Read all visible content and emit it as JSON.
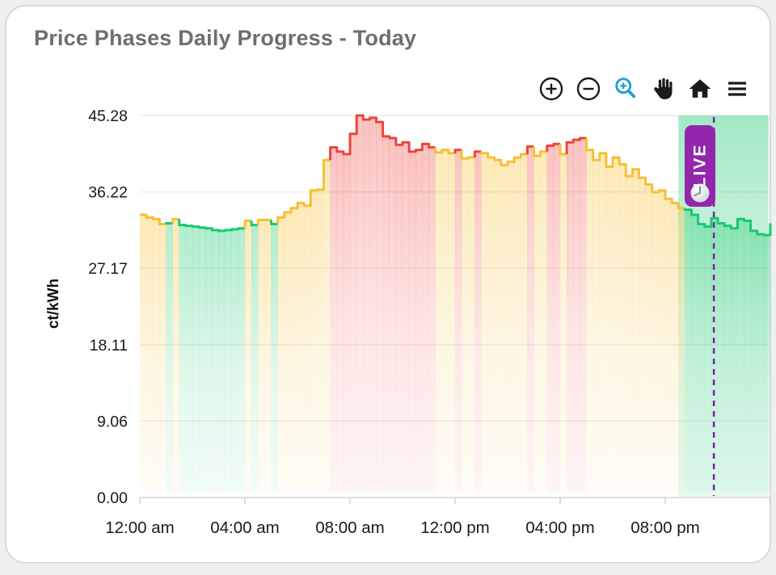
{
  "card": {
    "title": "Price Phases Daily Progress - Today"
  },
  "toolbar": {
    "icons": [
      "zoom-in-icon",
      "zoom-out-icon",
      "zoom-select-icon",
      "pan-hand-icon",
      "home-reset-icon",
      "menu-icon"
    ],
    "zoom_select_color": "#1a9fd9",
    "icon_color": "#1b1b1b"
  },
  "chart_data": {
    "type": "area",
    "subtype": "step-line-with-gradient-fill",
    "title": "Price Phases Daily Progress - Today",
    "ylabel": "ct/kWh",
    "ylim": [
      0,
      45.28
    ],
    "y_tick_values": [
      45.28,
      36.22,
      27.17,
      18.11,
      9.06,
      0
    ],
    "y_tick_labels": [
      "45.28",
      "36.22",
      "27.17",
      "18.11",
      "9.06",
      "0.00"
    ],
    "x_tick_hours": [
      0,
      4,
      8,
      12,
      16,
      20
    ],
    "x_tick_labels": [
      "12:00 am",
      "04:00 am",
      "08:00 am",
      "12:00 pm",
      "04:00 pm",
      "08:00 pm"
    ],
    "x_range_hours": [
      0,
      24
    ],
    "grid": "horizontal",
    "phase_colors": {
      "green": "#19c96e",
      "yellow": "#f5c033",
      "red": "#ee443c"
    },
    "live": {
      "label": "LIVE",
      "badge_color": "#9227ad",
      "line_color": "#7e22a3",
      "time_hours": 21.85
    },
    "green_region": {
      "start_hours": 20.5,
      "end_hours": 23.93
    },
    "end_value": 32.5,
    "series": [
      {
        "t": "00:00",
        "v": 33.5,
        "phase": "yellow"
      },
      {
        "t": "00:15",
        "v": 33.2,
        "phase": "yellow"
      },
      {
        "t": "00:30",
        "v": 33.0,
        "phase": "yellow"
      },
      {
        "t": "00:45",
        "v": 32.4,
        "phase": "yellow"
      },
      {
        "t": "01:00",
        "v": 32.5,
        "phase": "green"
      },
      {
        "t": "01:15",
        "v": 33.0,
        "phase": "yellow"
      },
      {
        "t": "01:30",
        "v": 32.3,
        "phase": "green"
      },
      {
        "t": "01:45",
        "v": 32.2,
        "phase": "green"
      },
      {
        "t": "02:00",
        "v": 32.1,
        "phase": "green"
      },
      {
        "t": "02:15",
        "v": 32.0,
        "phase": "green"
      },
      {
        "t": "02:30",
        "v": 31.9,
        "phase": "green"
      },
      {
        "t": "02:45",
        "v": 31.7,
        "phase": "green"
      },
      {
        "t": "03:00",
        "v": 31.6,
        "phase": "green"
      },
      {
        "t": "03:15",
        "v": 31.7,
        "phase": "green"
      },
      {
        "t": "03:30",
        "v": 31.8,
        "phase": "green"
      },
      {
        "t": "03:45",
        "v": 31.9,
        "phase": "green"
      },
      {
        "t": "04:00",
        "v": 32.8,
        "phase": "yellow"
      },
      {
        "t": "04:15",
        "v": 32.3,
        "phase": "green"
      },
      {
        "t": "04:30",
        "v": 32.9,
        "phase": "yellow"
      },
      {
        "t": "04:45",
        "v": 32.9,
        "phase": "yellow"
      },
      {
        "t": "05:00",
        "v": 32.4,
        "phase": "green"
      },
      {
        "t": "05:15",
        "v": 33.2,
        "phase": "yellow"
      },
      {
        "t": "05:30",
        "v": 33.8,
        "phase": "yellow"
      },
      {
        "t": "05:45",
        "v": 34.3,
        "phase": "yellow"
      },
      {
        "t": "06:00",
        "v": 34.9,
        "phase": "yellow"
      },
      {
        "t": "06:15",
        "v": 34.6,
        "phase": "yellow"
      },
      {
        "t": "06:30",
        "v": 36.4,
        "phase": "yellow"
      },
      {
        "t": "06:45",
        "v": 36.5,
        "phase": "yellow"
      },
      {
        "t": "07:00",
        "v": 40.0,
        "phase": "yellow"
      },
      {
        "t": "07:15",
        "v": 41.5,
        "phase": "red"
      },
      {
        "t": "07:30",
        "v": 41.0,
        "phase": "red"
      },
      {
        "t": "07:45",
        "v": 40.7,
        "phase": "red"
      },
      {
        "t": "08:00",
        "v": 43.1,
        "phase": "red"
      },
      {
        "t": "08:15",
        "v": 45.28,
        "phase": "red"
      },
      {
        "t": "08:30",
        "v": 44.8,
        "phase": "red"
      },
      {
        "t": "08:45",
        "v": 45.0,
        "phase": "red"
      },
      {
        "t": "09:00",
        "v": 44.5,
        "phase": "red"
      },
      {
        "t": "09:15",
        "v": 42.8,
        "phase": "red"
      },
      {
        "t": "09:30",
        "v": 42.6,
        "phase": "red"
      },
      {
        "t": "09:45",
        "v": 41.8,
        "phase": "red"
      },
      {
        "t": "10:00",
        "v": 42.1,
        "phase": "red"
      },
      {
        "t": "10:15",
        "v": 41.0,
        "phase": "red"
      },
      {
        "t": "10:30",
        "v": 41.2,
        "phase": "red"
      },
      {
        "t": "10:45",
        "v": 41.9,
        "phase": "red"
      },
      {
        "t": "11:00",
        "v": 41.5,
        "phase": "red"
      },
      {
        "t": "11:15",
        "v": 40.9,
        "phase": "yellow"
      },
      {
        "t": "11:30",
        "v": 41.2,
        "phase": "yellow"
      },
      {
        "t": "11:45",
        "v": 40.8,
        "phase": "yellow"
      },
      {
        "t": "12:00",
        "v": 41.2,
        "phase": "red"
      },
      {
        "t": "12:15",
        "v": 40.2,
        "phase": "yellow"
      },
      {
        "t": "12:30",
        "v": 40.3,
        "phase": "yellow"
      },
      {
        "t": "12:45",
        "v": 41.0,
        "phase": "red"
      },
      {
        "t": "13:00",
        "v": 40.8,
        "phase": "yellow"
      },
      {
        "t": "13:15",
        "v": 40.3,
        "phase": "yellow"
      },
      {
        "t": "13:30",
        "v": 40.0,
        "phase": "yellow"
      },
      {
        "t": "13:45",
        "v": 39.4,
        "phase": "yellow"
      },
      {
        "t": "14:00",
        "v": 39.8,
        "phase": "yellow"
      },
      {
        "t": "14:15",
        "v": 40.3,
        "phase": "yellow"
      },
      {
        "t": "14:30",
        "v": 40.7,
        "phase": "yellow"
      },
      {
        "t": "14:45",
        "v": 41.6,
        "phase": "red"
      },
      {
        "t": "15:00",
        "v": 40.5,
        "phase": "yellow"
      },
      {
        "t": "15:15",
        "v": 41.0,
        "phase": "yellow"
      },
      {
        "t": "15:30",
        "v": 41.7,
        "phase": "red"
      },
      {
        "t": "15:45",
        "v": 41.9,
        "phase": "red"
      },
      {
        "t": "16:00",
        "v": 40.7,
        "phase": "yellow"
      },
      {
        "t": "16:15",
        "v": 42.1,
        "phase": "red"
      },
      {
        "t": "16:30",
        "v": 42.4,
        "phase": "red"
      },
      {
        "t": "16:45",
        "v": 42.6,
        "phase": "red"
      },
      {
        "t": "17:00",
        "v": 41.2,
        "phase": "yellow"
      },
      {
        "t": "17:15",
        "v": 40.0,
        "phase": "yellow"
      },
      {
        "t": "17:30",
        "v": 40.8,
        "phase": "yellow"
      },
      {
        "t": "17:45",
        "v": 39.2,
        "phase": "yellow"
      },
      {
        "t": "18:00",
        "v": 40.3,
        "phase": "yellow"
      },
      {
        "t": "18:15",
        "v": 39.5,
        "phase": "yellow"
      },
      {
        "t": "18:30",
        "v": 38.1,
        "phase": "yellow"
      },
      {
        "t": "18:45",
        "v": 38.9,
        "phase": "yellow"
      },
      {
        "t": "19:00",
        "v": 37.9,
        "phase": "yellow"
      },
      {
        "t": "19:15",
        "v": 37.1,
        "phase": "yellow"
      },
      {
        "t": "19:30",
        "v": 36.2,
        "phase": "yellow"
      },
      {
        "t": "19:45",
        "v": 36.4,
        "phase": "yellow"
      },
      {
        "t": "20:00",
        "v": 35.4,
        "phase": "yellow"
      },
      {
        "t": "20:15",
        "v": 34.9,
        "phase": "yellow"
      },
      {
        "t": "20:30",
        "v": 34.3,
        "phase": "yellow"
      },
      {
        "t": "20:45",
        "v": 34.1,
        "phase": "green"
      },
      {
        "t": "21:00",
        "v": 33.5,
        "phase": "green"
      },
      {
        "t": "21:15",
        "v": 32.4,
        "phase": "green"
      },
      {
        "t": "21:30",
        "v": 32.1,
        "phase": "green"
      },
      {
        "t": "21:45",
        "v": 33.1,
        "phase": "green"
      },
      {
        "t": "22:00",
        "v": 32.5,
        "phase": "green"
      },
      {
        "t": "22:15",
        "v": 32.2,
        "phase": "green"
      },
      {
        "t": "22:30",
        "v": 31.9,
        "phase": "green"
      },
      {
        "t": "22:45",
        "v": 33.0,
        "phase": "green"
      },
      {
        "t": "23:00",
        "v": 32.8,
        "phase": "green"
      },
      {
        "t": "23:15",
        "v": 31.6,
        "phase": "green"
      },
      {
        "t": "23:30",
        "v": 31.2,
        "phase": "green"
      },
      {
        "t": "23:45",
        "v": 31.1,
        "phase": "green"
      }
    ]
  }
}
